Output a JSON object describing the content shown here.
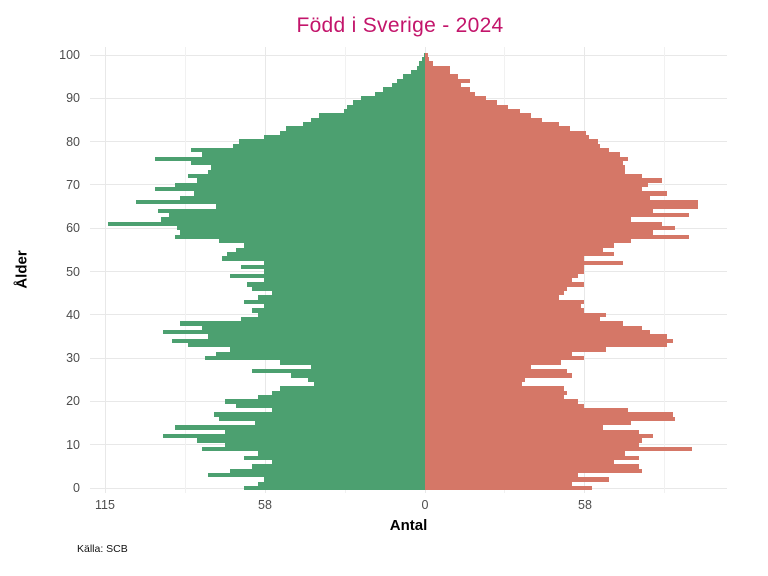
{
  "header": {
    "title": "Född i Sverige - 2024",
    "title_color": "#c3156b"
  },
  "caption": "Källa: SCB",
  "chart_data": {
    "type": "bar",
    "subtype": "population-pyramid",
    "title": "Född i Sverige - 2024",
    "xlabel": "Antal",
    "ylabel": "Ålder",
    "caption": "Källa: SCB",
    "legend": false,
    "grid": true,
    "y_axis": {
      "ticks": [
        0,
        10,
        20,
        30,
        40,
        50,
        60,
        70,
        80,
        90,
        100
      ],
      "range": [
        0,
        100
      ]
    },
    "x_axis": {
      "ticks": [
        {
          "value": -115,
          "label": "115"
        },
        {
          "value": -57.5,
          "label": "58"
        },
        {
          "value": 0,
          "label": "0"
        },
        {
          "value": 57.5,
          "label": "58"
        }
      ],
      "minor_breaks": [
        -86.25,
        -28.75,
        28.75,
        86.25
      ],
      "range": [
        -120.5,
        108.5
      ]
    },
    "ages": [
      0,
      1,
      2,
      3,
      4,
      5,
      6,
      7,
      8,
      9,
      10,
      11,
      12,
      13,
      14,
      15,
      16,
      17,
      18,
      19,
      20,
      21,
      22,
      23,
      24,
      25,
      26,
      27,
      28,
      29,
      30,
      31,
      32,
      33,
      34,
      35,
      36,
      37,
      38,
      39,
      40,
      41,
      42,
      43,
      44,
      45,
      46,
      47,
      48,
      49,
      50,
      51,
      52,
      53,
      54,
      55,
      56,
      57,
      58,
      59,
      60,
      61,
      62,
      63,
      64,
      65,
      66,
      67,
      68,
      69,
      70,
      71,
      72,
      73,
      74,
      75,
      76,
      77,
      78,
      79,
      80,
      81,
      82,
      83,
      84,
      85,
      86,
      87,
      88,
      89,
      90,
      91,
      92,
      93,
      94,
      95,
      96,
      97,
      98,
      99,
      100
    ],
    "series": [
      {
        "name": "left-green",
        "side": "left",
        "color": "#4ca070",
        "values": [
          65,
          60,
          58,
          78,
          70,
          62,
          55,
          65,
          60,
          80,
          72,
          82,
          94,
          72,
          90,
          61,
          74,
          76,
          55,
          68,
          72,
          60,
          55,
          52,
          40,
          42,
          48,
          62,
          41,
          52,
          79,
          75,
          70,
          85,
          91,
          78,
          94,
          80,
          88,
          66,
          60,
          62,
          58,
          65,
          60,
          55,
          62,
          64,
          58,
          70,
          58,
          66,
          58,
          73,
          71,
          68,
          65,
          74,
          90,
          88,
          89,
          114,
          95,
          92,
          96,
          75,
          104,
          88,
          83,
          97,
          90,
          82,
          85,
          78,
          77,
          84,
          97,
          80,
          84,
          69,
          67,
          58,
          52,
          50,
          44,
          41,
          38,
          29,
          28,
          26,
          23,
          18,
          15,
          12,
          10,
          8,
          5,
          3,
          2,
          1,
          0.5
        ]
      },
      {
        "name": "right-red",
        "side": "right",
        "color": "#d57767",
        "values": [
          60,
          53,
          66,
          55,
          78,
          77,
          68,
          77,
          72,
          96,
          77,
          78,
          82,
          77,
          64,
          74,
          90,
          89,
          73,
          57,
          55,
          50,
          51,
          50,
          35,
          36,
          53,
          51,
          38,
          49,
          57,
          53,
          65,
          87,
          89,
          87,
          81,
          78,
          71,
          63,
          65,
          57,
          56,
          57,
          48,
          50,
          51,
          57,
          53,
          55,
          57,
          57,
          71,
          57,
          68,
          64,
          68,
          74,
          95,
          82,
          90,
          85,
          74,
          95,
          82,
          98,
          98,
          81,
          87,
          78,
          80,
          85,
          78,
          72,
          72,
          71,
          73,
          70,
          66,
          63,
          62,
          59,
          58,
          52,
          48,
          42,
          38,
          34,
          30,
          26,
          22,
          18,
          16,
          13,
          16,
          12,
          9,
          9,
          3,
          1.5,
          1
        ]
      }
    ]
  }
}
